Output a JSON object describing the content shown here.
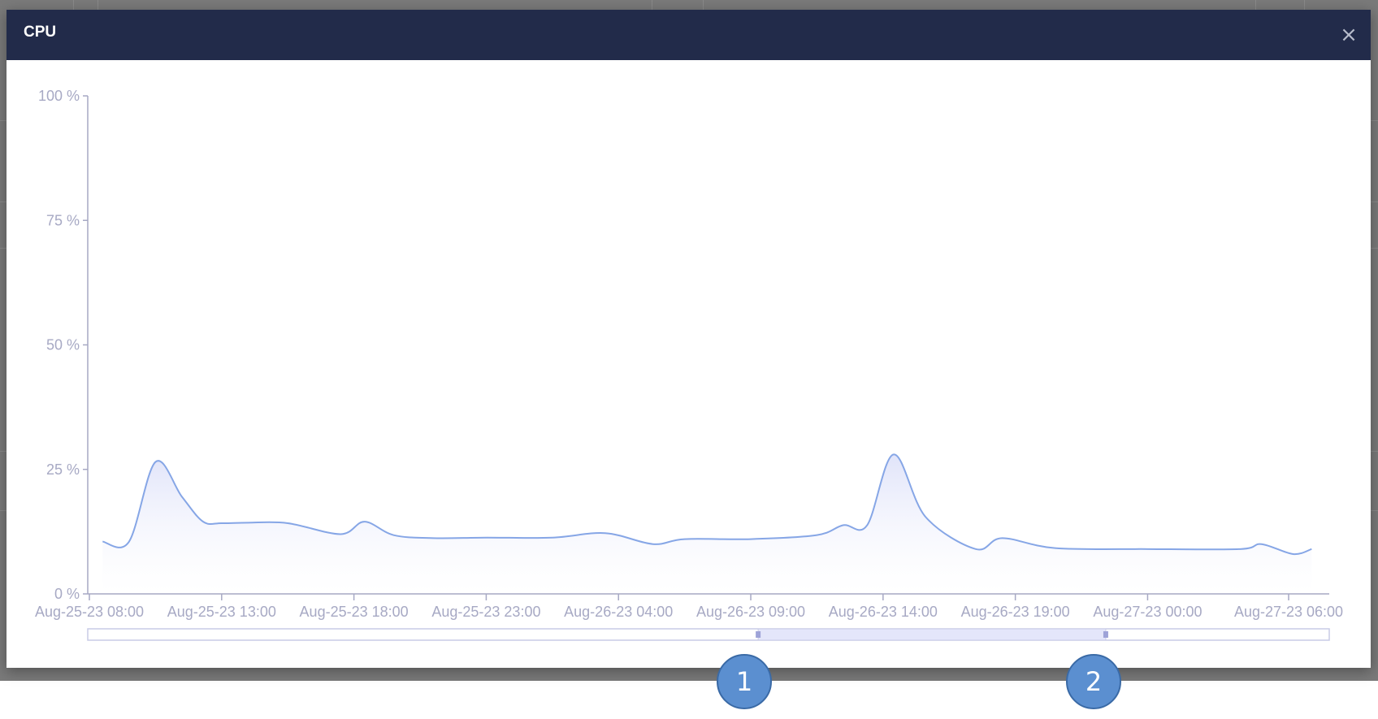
{
  "modal": {
    "title": "CPU",
    "close_label": "×"
  },
  "annotations": [
    "1",
    "2"
  ],
  "slider": {
    "range_start_fraction": 0.54,
    "range_end_fraction": 0.82
  },
  "colors": {
    "header": "#222b4a",
    "line": "#86a6e6",
    "axis": "#a7a9c4",
    "annotation": "#5b8fd0"
  },
  "chart_data": {
    "type": "area",
    "title": "",
    "xlabel": "",
    "ylabel": "",
    "y_ticks": [
      "0 %",
      "25 %",
      "50 %",
      "75 %",
      "100 %"
    ],
    "ylim": [
      0,
      100
    ],
    "x_ticks": [
      "Aug-25-23 08:00",
      "Aug-25-23 13:00",
      "Aug-25-23 18:00",
      "Aug-25-23 23:00",
      "Aug-26-23 04:00",
      "Aug-26-23 09:00",
      "Aug-26-23 14:00",
      "Aug-26-23 19:00",
      "Aug-27-23 00:00",
      "Aug-27-23 06:00"
    ],
    "x_hours": [
      0,
      5,
      10,
      15,
      20,
      25,
      30,
      35,
      40,
      45.33
    ],
    "series": [
      {
        "x": [
          0.5,
          1.5,
          2.5,
          3.5,
          4.3,
          5,
          6,
          7.5,
          9.5,
          10.4,
          11.5,
          13,
          15,
          17.5,
          19.5,
          21.3,
          22.5,
          25,
          27.5,
          28.5,
          29.4,
          30.4,
          31.6,
          33.5,
          34.5,
          36.5,
          40,
          43.5,
          44.3,
          45.5,
          46.2
        ],
        "values": [
          10.5,
          10.5,
          26.5,
          19.5,
          14.5,
          14.2,
          14.3,
          14.2,
          12.0,
          14.5,
          11.8,
          11.2,
          11.3,
          11.3,
          12.2,
          10.0,
          11.0,
          11.0,
          11.8,
          13.8,
          13.8,
          28.0,
          15.5,
          9.0,
          11.2,
          9.2,
          9.0,
          9.0,
          10.0,
          8.0,
          9.0
        ]
      }
    ]
  }
}
